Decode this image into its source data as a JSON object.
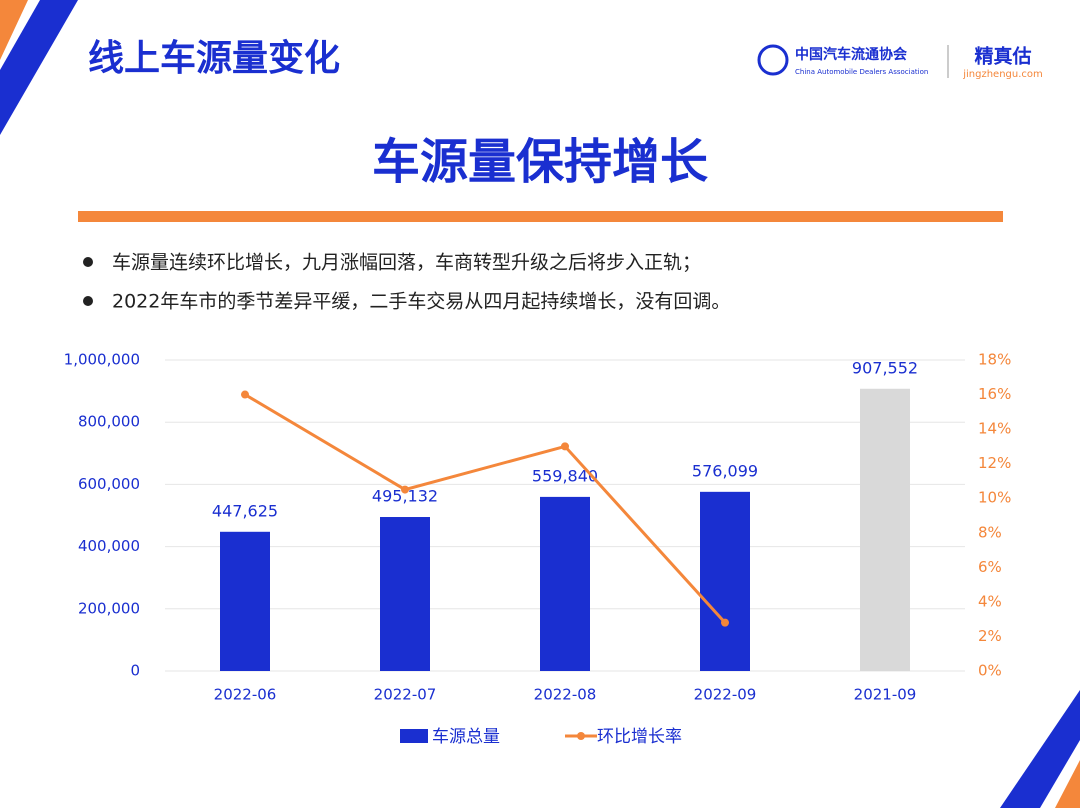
{
  "header": {
    "title": "线上车源量变化",
    "logo_cn": "中国汽车流通协会",
    "logo_en": "China Automobile Dealers Association",
    "brand": "精真估",
    "brand_url": "jingzhengu.com"
  },
  "headline": "车源量保持增长",
  "bullets": [
    "车源量连续环比增长，九月涨幅回落，车商转型升级之后将步入正轨；",
    "2022年车市的季节差异平缓，二手车交易从四月起持续增长，没有回调。"
  ],
  "chart_data": {
    "type": "bar",
    "categories": [
      "2022-06",
      "2022-07",
      "2022-08",
      "2022-09",
      "2021-09"
    ],
    "series": [
      {
        "name": "车源总量",
        "type": "bar",
        "color": "#1a2fd0",
        "colors": [
          "#1a2fd0",
          "#1a2fd0",
          "#1a2fd0",
          "#1a2fd0",
          "#d9d9d9"
        ],
        "values": [
          447625,
          495132,
          559840,
          576099,
          907552
        ],
        "value_labels": [
          "447,625",
          "495,132",
          "559,840",
          "576,099",
          "907,552"
        ]
      },
      {
        "name": "环比增长率",
        "type": "line",
        "axis": "y2",
        "color": "#f4873b",
        "values": [
          16,
          10.5,
          13,
          2.8,
          null
        ]
      }
    ],
    "ylim": [
      0,
      1000000
    ],
    "yticks": [
      {
        "value": 0,
        "label": "0"
      },
      {
        "value": 200000,
        "label": "200,000"
      },
      {
        "value": 400000,
        "label": "400,000"
      },
      {
        "value": 600000,
        "label": "600,000"
      },
      {
        "value": 800000,
        "label": "800,000"
      },
      {
        "value": 1000000,
        "label": "1,000,000"
      }
    ],
    "y2lim": [
      0,
      18
    ],
    "y2ticks": [
      {
        "value": 0,
        "label": "0%"
      },
      {
        "value": 2,
        "label": "2%"
      },
      {
        "value": 4,
        "label": "4%"
      },
      {
        "value": 6,
        "label": "6%"
      },
      {
        "value": 8,
        "label": "8%"
      },
      {
        "value": 10,
        "label": "10%"
      },
      {
        "value": 12,
        "label": "12%"
      },
      {
        "value": 14,
        "label": "14%"
      },
      {
        "value": 16,
        "label": "16%"
      },
      {
        "value": 18,
        "label": "18%"
      }
    ],
    "legend": "bottom"
  }
}
